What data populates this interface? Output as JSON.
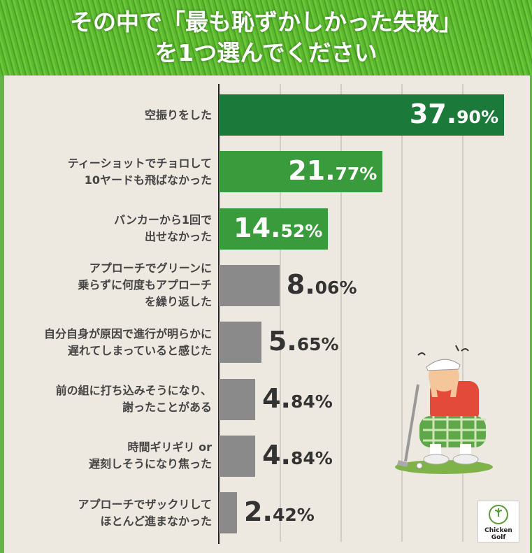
{
  "header": {
    "title_line1": "その中で「最も恥ずかしかった失敗」",
    "title_line2": "を1つ選んでください"
  },
  "colors": {
    "top1": "#1b7a3a",
    "top2_3": "#3a9b3c",
    "other": "#8a8a8a",
    "background": "#ede9e0",
    "grid": "#d2cdc4"
  },
  "chart_data": {
    "type": "bar",
    "orientation": "horizontal",
    "title": "その中で「最も恥ずかしかった失敗」を1つ選んでください",
    "grid": true,
    "xlim": [
      0,
      41.6
    ],
    "categories": [
      [
        "空振りをした"
      ],
      [
        "ティーショットでチョロして",
        "10ヤードも飛ばなかった"
      ],
      [
        "バンカーから1回で",
        "出せなかった"
      ],
      [
        "アプローチでグリーンに",
        "乗らずに何度もアプローチ",
        "を繰り返した"
      ],
      [
        "自分自身が原因で進行が明らかに",
        "遅れてしまっていると感じた"
      ],
      [
        "前の組に打ち込みそうになり、",
        "謝ったことがある"
      ],
      [
        "時間ギリギリ or",
        "遅刻しそうになり焦った"
      ],
      [
        "アプローチでザックリして",
        "ほとんど進まなかった"
      ]
    ],
    "values": [
      37.9,
      21.77,
      14.52,
      8.06,
      5.65,
      4.84,
      4.84,
      2.42
    ],
    "value_labels": [
      [
        "37.",
        "90%"
      ],
      [
        "21.",
        "77%"
      ],
      [
        "14.",
        "52%"
      ],
      [
        "8.",
        "06%"
      ],
      [
        "5.",
        "65%"
      ],
      [
        "4.",
        "84%"
      ],
      [
        "4.",
        "84%"
      ],
      [
        "2.",
        "42%"
      ]
    ]
  },
  "logo": {
    "line1": "Chicken",
    "line2": "Golf"
  }
}
